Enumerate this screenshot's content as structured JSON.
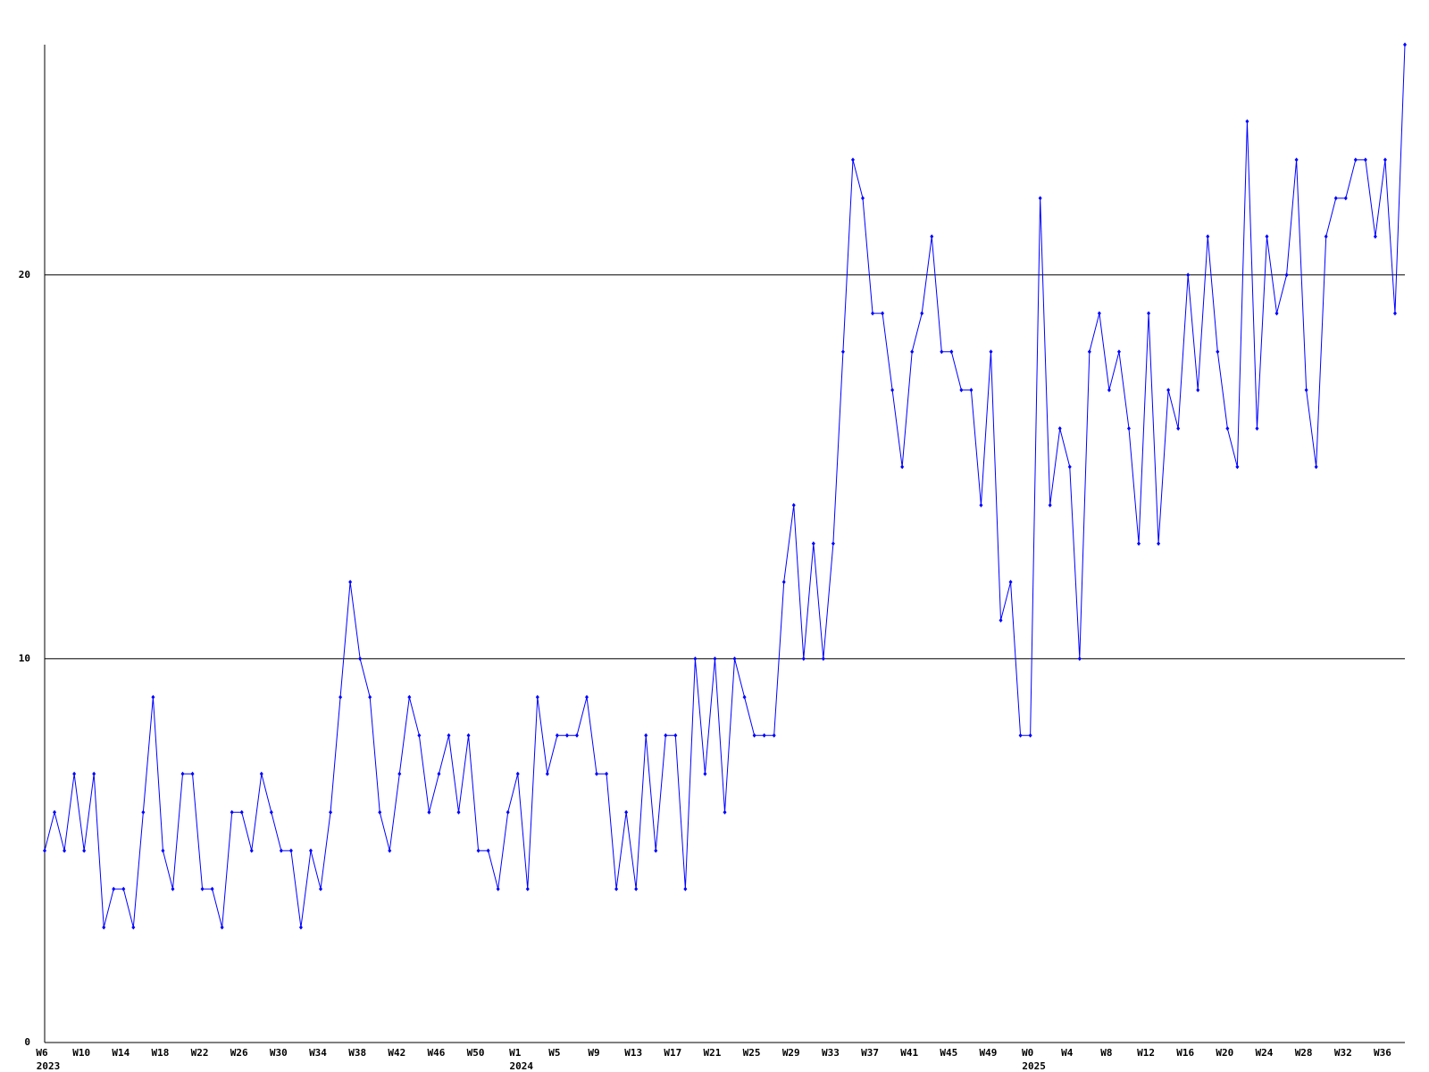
{
  "chart_data": {
    "type": "line",
    "categories": [
      "W6",
      null,
      null,
      null,
      "W10",
      null,
      null,
      null,
      "W14",
      null,
      null,
      null,
      "W18",
      null,
      null,
      null,
      "W22",
      null,
      null,
      null,
      "W26",
      null,
      null,
      null,
      "W30",
      null,
      null,
      null,
      "W34",
      null,
      null,
      null,
      "W38",
      null,
      null,
      null,
      "W42",
      null,
      null,
      null,
      "W46",
      null,
      null,
      null,
      "W50",
      null,
      null,
      null,
      "W1",
      null,
      null,
      null,
      "W5",
      null,
      null,
      null,
      "W9",
      null,
      null,
      null,
      "W13",
      null,
      null,
      null,
      "W17",
      null,
      null,
      null,
      "W21",
      null,
      null,
      null,
      "W25",
      null,
      null,
      null,
      "W29",
      null,
      null,
      null,
      "W33",
      null,
      null,
      null,
      "W37",
      null,
      null,
      null,
      "W41",
      null,
      null,
      null,
      "W45",
      null,
      null,
      null,
      "W49",
      null,
      null,
      null,
      "W0",
      null,
      null,
      null,
      "W4",
      null,
      null,
      null,
      "W8",
      null,
      null,
      null,
      "W12",
      null,
      null,
      null,
      "W16",
      null,
      null,
      null,
      "W20",
      null,
      null,
      null,
      "W24",
      null,
      null,
      null,
      "W28",
      null,
      null,
      null,
      "W32",
      null,
      null,
      null,
      "W36",
      null,
      null
    ],
    "years": [
      "2023",
      null,
      null,
      null,
      null,
      null,
      null,
      null,
      null,
      null,
      null,
      null,
      null,
      null,
      null,
      null,
      null,
      null,
      null,
      null,
      null,
      null,
      null,
      null,
      null,
      null,
      null,
      null,
      null,
      null,
      null,
      null,
      null,
      null,
      null,
      null,
      null,
      null,
      null,
      null,
      null,
      null,
      null,
      null,
      null,
      null,
      null,
      null,
      "2024",
      null,
      null,
      null,
      null,
      null,
      null,
      null,
      null,
      null,
      null,
      null,
      null,
      null,
      null,
      null,
      null,
      null,
      null,
      null,
      null,
      null,
      null,
      null,
      null,
      null,
      null,
      null,
      null,
      null,
      null,
      null,
      null,
      null,
      null,
      null,
      null,
      null,
      null,
      null,
      null,
      null,
      null,
      null,
      null,
      null,
      null,
      null,
      null,
      null,
      null,
      null,
      "2025",
      null,
      null,
      null,
      null,
      null,
      null,
      null,
      null,
      null,
      null,
      null,
      null,
      null,
      null,
      null,
      null,
      null,
      null,
      null,
      null,
      null,
      null,
      null,
      null,
      null,
      null,
      null,
      null,
      null,
      null,
      null,
      null,
      null,
      null,
      null,
      null,
      null,
      null
    ],
    "series": [
      {
        "color": "#0000ff",
        "values": [
          5,
          6,
          5,
          7,
          5,
          7,
          3,
          4,
          4,
          3,
          6,
          9,
          5,
          4,
          7,
          7,
          4,
          4,
          3,
          6,
          6,
          5,
          7,
          6,
          5,
          5,
          3,
          5,
          4,
          6,
          9,
          12,
          10,
          9,
          6,
          5,
          7,
          9,
          8,
          6,
          7,
          8,
          6,
          8,
          5,
          5,
          4,
          6,
          7,
          4,
          9,
          7,
          8,
          8,
          8,
          9,
          7,
          7,
          4,
          6,
          4,
          8,
          5,
          8,
          8,
          4,
          10,
          7,
          10,
          6,
          10,
          9,
          8,
          8,
          8,
          12,
          14,
          10,
          13,
          10,
          13,
          18,
          23,
          22,
          19,
          19,
          17,
          15,
          18,
          19,
          21,
          18,
          18,
          17,
          17,
          14,
          18,
          11,
          12,
          8,
          8,
          22,
          14,
          16,
          15,
          10,
          18,
          19,
          17,
          18,
          16,
          13,
          19,
          13,
          17,
          16,
          20,
          17,
          21,
          18,
          16,
          15,
          24,
          16,
          21,
          19,
          20,
          23,
          17,
          15,
          21,
          22,
          22,
          23,
          23,
          21,
          23,
          19,
          26
        ]
      }
    ],
    "ylim": [
      0,
      26
    ],
    "yticks": [
      0,
      10,
      20
    ],
    "grid": true,
    "grid_color": "#000000"
  }
}
